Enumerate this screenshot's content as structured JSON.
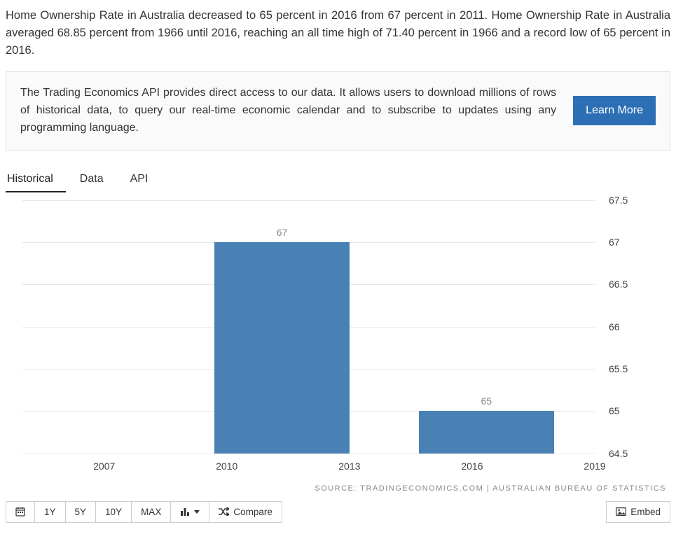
{
  "description": "Home Ownership Rate in Australia decreased to 65 percent in 2016 from 67 percent in 2011. Home Ownership Rate in Australia averaged 68.85 percent from 1966 until 2016, reaching an all time high of 71.40 percent in 1966 and a record low of 65 percent in 2016.",
  "api_banner": {
    "text": "The Trading Economics API provides direct access to our data. It allows users to download millions of rows of historical data, to query our real-time economic calendar and to subscribe to updates using any programming language.",
    "button_label": "Learn More",
    "button_bg": "#2d6fb5"
  },
  "tabs": [
    {
      "label": "Historical",
      "active": true
    },
    {
      "label": "Data",
      "active": false
    },
    {
      "label": "API",
      "active": false
    }
  ],
  "chart": {
    "type": "bar",
    "bar_color": "#4a81b4",
    "grid_color": "#e8e8e8",
    "background_color": "#ffffff",
    "y_axis": {
      "min": 64.5,
      "max": 67.5,
      "ticks": [
        64.5,
        65,
        65.5,
        66,
        66.5,
        67,
        67.5
      ],
      "side": "right",
      "label_fontsize": 14,
      "label_color": "#444444"
    },
    "x_axis": {
      "ticks": [
        2007,
        2010,
        2013,
        2016,
        2019
      ],
      "min": 2005,
      "max": 2019,
      "label_fontsize": 14,
      "label_color": "#444444"
    },
    "bars": [
      {
        "x_start": 2009.7,
        "x_end": 2013.0,
        "value": 67,
        "label": "67"
      },
      {
        "x_start": 2014.7,
        "x_end": 2018.0,
        "value": 65,
        "label": "65"
      }
    ],
    "bar_label_color": "#888888",
    "bar_label_fontsize": 14
  },
  "source_line": "SOURCE: TRADINGECONOMICS.COM | AUSTRALIAN BUREAU OF STATISTICS",
  "toolbar": {
    "range_buttons": [
      "1Y",
      "5Y",
      "10Y",
      "MAX"
    ],
    "compare_label": "Compare",
    "embed_label": "Embed"
  }
}
